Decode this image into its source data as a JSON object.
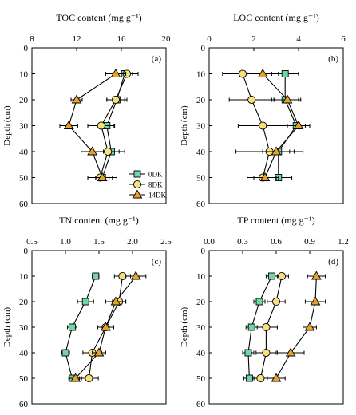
{
  "chart_data": [
    {
      "type": "line",
      "panel": "(a)",
      "title": "TOC content (mg g⁻¹)",
      "ylabel": "Depth (cm)",
      "xlim": [
        8,
        20
      ],
      "ylim": [
        0,
        60
      ],
      "x_ticks": [
        "8",
        "12",
        "16",
        "20"
      ],
      "y_ticks": [
        "0",
        "10",
        "20",
        "30",
        "40",
        "50",
        "60"
      ],
      "y": [
        10,
        20,
        30,
        40,
        50
      ],
      "series": [
        {
          "name": "0DK",
          "x": [
            16.3,
            15.6,
            14.7,
            15.1,
            14.3
          ],
          "err": [
            0.7,
            0.9,
            0.6,
            0.7,
            1.3
          ]
        },
        {
          "name": "8DK",
          "x": [
            16.5,
            15.5,
            14.2,
            14.8,
            14.1
          ],
          "err": [
            1.0,
            0.8,
            1.2,
            1.5,
            1.1
          ]
        },
        {
          "name": "14DK",
          "x": [
            15.5,
            12.0,
            11.3,
            13.4,
            14.3
          ],
          "err": [
            0.9,
            0.5,
            0.8,
            1.0,
            0.6
          ]
        }
      ],
      "legend": [
        "0DK",
        "8DK",
        "14DK"
      ],
      "legend_position": "bottom-right"
    },
    {
      "type": "line",
      "panel": "(b)",
      "title": "LOC content (mg g⁻¹)",
      "ylabel": "Depth (cm)",
      "xlim": [
        0,
        6
      ],
      "ylim": [
        0,
        60
      ],
      "x_ticks": [
        "0",
        "2",
        "4",
        "6"
      ],
      "y_ticks": [
        "0",
        "10",
        "20",
        "30",
        "40",
        "50",
        "60"
      ],
      "y": [
        10,
        20,
        30,
        40,
        50
      ],
      "series": [
        {
          "name": "0DK",
          "x": [
            3.4,
            3.4,
            3.9,
            3.1,
            3.1
          ],
          "err": [
            0.6,
            0.6,
            0.4,
            0.7,
            0.6
          ]
        },
        {
          "name": "8DK",
          "x": [
            1.5,
            1.9,
            2.4,
            2.7,
            2.4
          ],
          "err": [
            0.9,
            1.0,
            1.1,
            1.5,
            0.7
          ]
        },
        {
          "name": "14DK",
          "x": [
            2.4,
            3.5,
            4.0,
            3.0,
            2.5
          ],
          "err": [
            0.7,
            0.6,
            0.5,
            0.6,
            0.5
          ]
        }
      ]
    },
    {
      "type": "line",
      "panel": "(c)",
      "title": "TN content (mg g⁻¹)",
      "ylabel": "Depth (cm)",
      "xlim": [
        0.5,
        2.5
      ],
      "ylim": [
        0,
        60
      ],
      "x_ticks": [
        "0.5",
        "1.0",
        "1.5",
        "2.0",
        "2.5"
      ],
      "y_ticks": [
        "0",
        "10",
        "20",
        "30",
        "40",
        "50",
        "60"
      ],
      "y": [
        10,
        20,
        30,
        40,
        50
      ],
      "series": [
        {
          "name": "0DK",
          "x": [
            1.45,
            1.3,
            1.1,
            1.0,
            1.1
          ],
          "err": [
            0.05,
            0.12,
            0.07,
            0.06,
            0.05
          ]
        },
        {
          "name": "8DK",
          "x": [
            1.85,
            1.8,
            1.6,
            1.4,
            1.35
          ],
          "err": [
            0.12,
            0.1,
            0.12,
            0.14,
            0.14
          ]
        },
        {
          "name": "14DK",
          "x": [
            2.05,
            1.75,
            1.6,
            1.5,
            1.15
          ],
          "err": [
            0.15,
            0.15,
            0.12,
            0.1,
            0.09
          ]
        }
      ]
    },
    {
      "type": "line",
      "panel": "(d)",
      "title": "TP content (mg g⁻¹)",
      "ylabel": "Depth (cm)",
      "xlim": [
        0.0,
        1.2
      ],
      "ylim": [
        0,
        60
      ],
      "x_ticks": [
        "0.0",
        "0.3",
        "0.6",
        "0.9",
        "1.2"
      ],
      "y_ticks": [
        "0",
        "10",
        "20",
        "30",
        "40",
        "50",
        "60"
      ],
      "y": [
        10,
        20,
        30,
        40,
        50
      ],
      "series": [
        {
          "name": "0DK",
          "x": [
            0.56,
            0.45,
            0.38,
            0.35,
            0.36
          ],
          "err": [
            0.05,
            0.05,
            0.05,
            0.05,
            0.05
          ]
        },
        {
          "name": "8DK",
          "x": [
            0.65,
            0.6,
            0.51,
            0.51,
            0.46
          ],
          "err": [
            0.06,
            0.08,
            0.1,
            0.09,
            0.06
          ]
        },
        {
          "name": "14DK",
          "x": [
            0.96,
            0.95,
            0.9,
            0.73,
            0.6
          ],
          "err": [
            0.08,
            0.09,
            0.06,
            0.12,
            0.08
          ]
        }
      ]
    }
  ],
  "series_styles": {
    "0DK": {
      "marker": "square",
      "color": "#6fd7a5"
    },
    "8DK": {
      "marker": "circle",
      "color": "#f7e07a"
    },
    "14DK": {
      "marker": "triangle",
      "color": "#e7a323"
    }
  }
}
